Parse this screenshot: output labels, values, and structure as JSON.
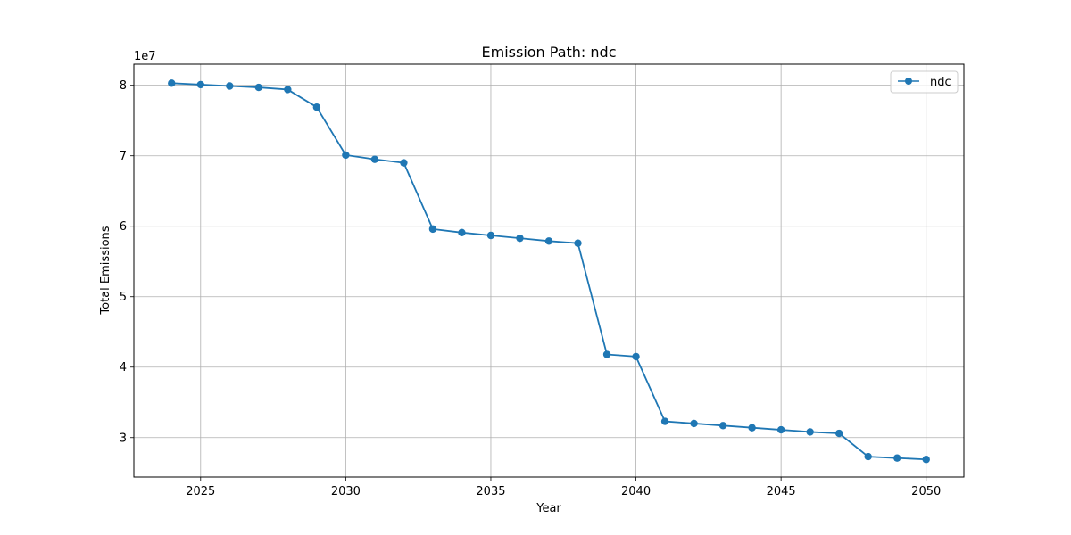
{
  "chart_data": {
    "type": "line",
    "title": "Emission Path: ndc",
    "xlabel": "Year",
    "ylabel": "Total Emissions",
    "y_offset_label": "1e7",
    "y_scale_factor": 10000000,
    "xlim": [
      2022.7,
      2051.3
    ],
    "ylim": [
      24400000,
      83000000
    ],
    "x_ticks": [
      2025,
      2030,
      2035,
      2040,
      2045,
      2050
    ],
    "y_ticks": [
      3,
      4,
      5,
      6,
      7,
      8
    ],
    "grid": true,
    "legend_position": "top-right",
    "x": [
      2024,
      2025,
      2026,
      2027,
      2028,
      2029,
      2030,
      2031,
      2032,
      2033,
      2034,
      2035,
      2036,
      2037,
      2038,
      2039,
      2040,
      2041,
      2042,
      2043,
      2044,
      2045,
      2046,
      2047,
      2048,
      2049,
      2050
    ],
    "series": [
      {
        "name": "ndc",
        "color": "#1f77b4",
        "marker": "circle",
        "values": [
          80300000,
          80100000,
          79900000,
          79700000,
          79400000,
          76900000,
          70100000,
          69500000,
          69000000,
          59600000,
          59100000,
          58700000,
          58300000,
          57900000,
          57600000,
          41800000,
          41500000,
          32300000,
          32000000,
          31700000,
          31400000,
          31100000,
          30800000,
          30600000,
          27300000,
          27100000,
          26900000
        ]
      }
    ]
  }
}
